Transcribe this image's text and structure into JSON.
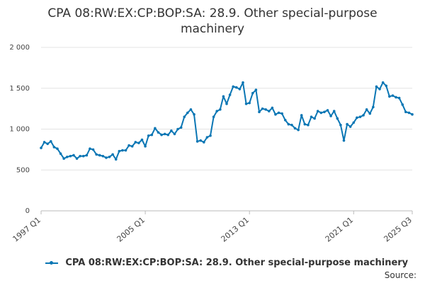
{
  "chart_data": {
    "type": "line",
    "title": "CPA 08:RW:EX:CP:BOP:SA: 28.9. Other special-purpose machinery",
    "xlabel": "",
    "ylabel": "",
    "ylim": [
      0,
      2000
    ],
    "y_ticks": [
      "0",
      "500",
      "1 000",
      "1 500",
      "2 000"
    ],
    "y_tick_values": [
      0,
      500,
      1000,
      1500,
      2000
    ],
    "x_tick_labels": [
      "1997 Q1",
      "2005 Q1",
      "2013 Q1",
      "2021 Q1",
      "2025 Q3"
    ],
    "x_tick_index": [
      0,
      32,
      64,
      96,
      114
    ],
    "grid": true,
    "legend": "bottom",
    "source_label": "Source:",
    "series": [
      {
        "name": "CPA 08:RW:EX:CP:BOP:SA: 28.9. Other special-purpose machinery",
        "color": "#0a76b4",
        "x_start": "1997 Q1",
        "values": [
          770,
          840,
          820,
          850,
          780,
          760,
          700,
          640,
          660,
          670,
          680,
          640,
          670,
          670,
          680,
          760,
          750,
          690,
          680,
          670,
          650,
          660,
          690,
          630,
          730,
          740,
          740,
          800,
          790,
          840,
          830,
          870,
          790,
          920,
          930,
          1010,
          960,
          930,
          940,
          930,
          980,
          940,
          1000,
          1020,
          1150,
          1200,
          1240,
          1180,
          850,
          860,
          840,
          900,
          920,
          1150,
          1220,
          1240,
          1400,
          1310,
          1420,
          1520,
          1510,
          1490,
          1570,
          1310,
          1320,
          1440,
          1480,
          1210,
          1250,
          1240,
          1220,
          1260,
          1180,
          1200,
          1190,
          1110,
          1060,
          1050,
          1010,
          990,
          1170,
          1060,
          1050,
          1150,
          1130,
          1220,
          1200,
          1210,
          1230,
          1160,
          1220,
          1130,
          1050,
          860,
          1060,
          1030,
          1080,
          1140,
          1150,
          1170,
          1240,
          1190,
          1270,
          1520,
          1490,
          1570,
          1530,
          1400,
          1410,
          1390,
          1380,
          1300,
          1210,
          1200,
          1180
        ]
      }
    ]
  }
}
